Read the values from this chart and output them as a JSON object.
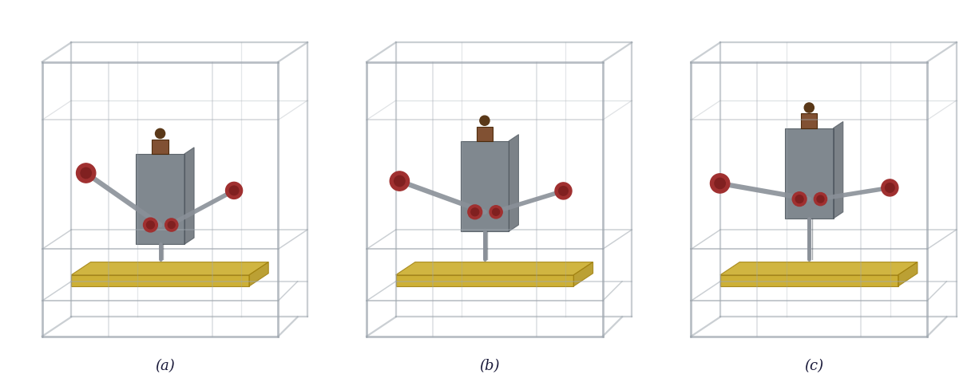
{
  "labels": [
    "(a)",
    "(b)",
    "(c)"
  ],
  "label_fontsize": 13,
  "background_color": "#ffffff",
  "fig_width": 12.26,
  "fig_height": 4.79,
  "frame_color": "#a0a8b0",
  "frame_alpha": 0.55,
  "platform_color": "#c8a820",
  "body_color": "#6e7880",
  "arm_color": "#8a9098",
  "joint_color": "#a03030",
  "dark_body_color": "#505860",
  "leg_color": "#b0b8c0",
  "text_color": "#1a1a3a"
}
